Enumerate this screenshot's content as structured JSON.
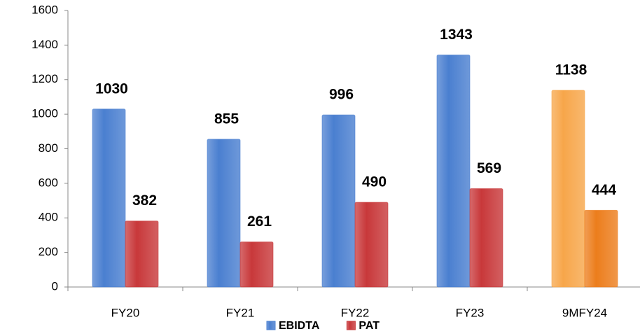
{
  "chart_data": {
    "type": "bar",
    "categories": [
      "FY20",
      "FY21",
      "FY22",
      "FY23",
      "9MFY24"
    ],
    "series": [
      {
        "name": "EBIDTA",
        "color": "#4a7fd0",
        "colors": [
          "#4a7fd0",
          "#4a7fd0",
          "#4a7fd0",
          "#4a7fd0",
          "#f7a64a"
        ],
        "values": [
          1030,
          855,
          996,
          1343,
          1138
        ]
      },
      {
        "name": "PAT",
        "color": "#c8383a",
        "colors": [
          "#c8383a",
          "#c8383a",
          "#c8383a",
          "#c8383a",
          "#ec7d1c"
        ],
        "values": [
          382,
          261,
          490,
          569,
          444
        ]
      }
    ],
    "ylim": [
      0,
      1600
    ],
    "yticks": [
      0,
      200,
      400,
      600,
      800,
      1000,
      1200,
      1400,
      1600
    ],
    "grid": false,
    "legend": "bottom",
    "data_labels": true
  }
}
